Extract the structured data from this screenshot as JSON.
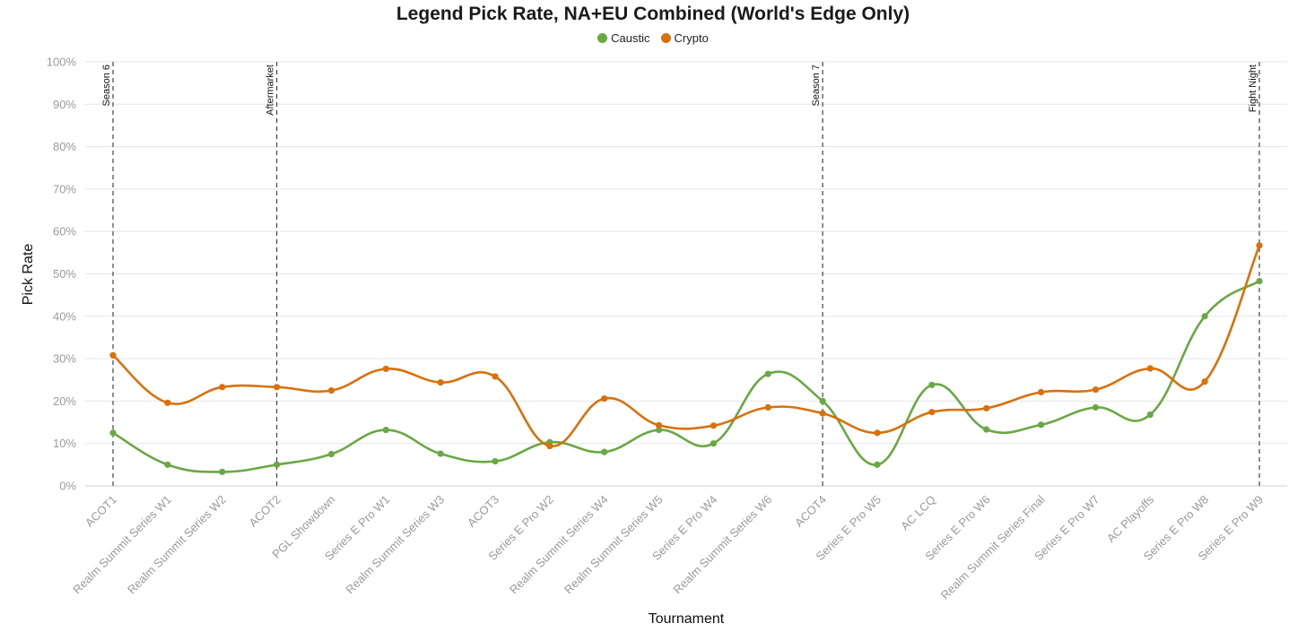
{
  "chart_data": {
    "type": "line",
    "title": "Legend Pick Rate, NA+EU Combined (World's Edge Only)",
    "xlabel": "Tournament",
    "ylabel": "Pick Rate",
    "ylim": [
      0,
      100
    ],
    "y_ticks": [
      "0%",
      "10%",
      "20%",
      "30%",
      "40%",
      "50%",
      "60%",
      "70%",
      "80%",
      "90%",
      "100%"
    ],
    "grid": true,
    "legend_position": "top-center",
    "categories": [
      "ACOT1",
      "Realm Summit Series W1",
      "Realm Summit Series W2",
      "ACOT2",
      "PGL Showdown",
      "Series E Pro W1",
      "Realm Summit Series W3",
      "ACOT3",
      "Series E Pro W2",
      "Realm Summit Series W4",
      "Realm Summit Series W5",
      "Series E Pro W4",
      "Realm Summit Series W6",
      "ACOT4",
      "Series E Pro W5",
      "AC LCQ",
      "Series E Pro W6",
      "Realm Summit Series Final",
      "Series E Pro W7",
      "AC Playoffs",
      "Series E Pro W8",
      "Series E Pro W9"
    ],
    "series": [
      {
        "name": "Caustic",
        "color": "#6aa843",
        "values": [
          12.5,
          5.0,
          3.3,
          5.0,
          7.5,
          13.2,
          7.6,
          5.8,
          10.3,
          8.0,
          13.2,
          10.0,
          26.4,
          20.0,
          5.0,
          23.8,
          13.3,
          14.4,
          18.5,
          16.8,
          40.0,
          48.3
        ]
      },
      {
        "name": "Crypto",
        "color": "#d9700b",
        "values": [
          30.8,
          19.6,
          23.3,
          23.3,
          22.5,
          27.6,
          24.4,
          25.8,
          9.4,
          20.6,
          14.3,
          14.2,
          18.5,
          17.1,
          12.5,
          17.4,
          18.3,
          22.1,
          22.7,
          27.7,
          24.6,
          56.7
        ]
      }
    ],
    "annotations": [
      {
        "label": "Season 6",
        "at": "ACOT1"
      },
      {
        "label": "Aftermarket",
        "at": "ACOT2"
      },
      {
        "label": "Season 7",
        "at": "ACOT4"
      },
      {
        "label": "Fight Night",
        "at": "Series E Pro W9"
      }
    ]
  }
}
